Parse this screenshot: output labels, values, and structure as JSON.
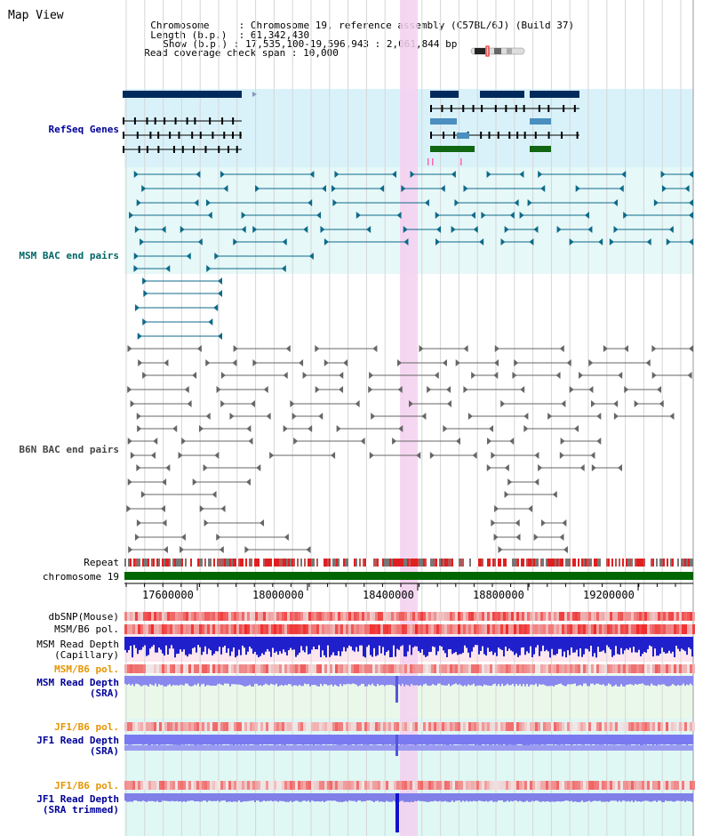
{
  "header": {
    "view_title": "Map View",
    "chromosome_label": "Chromosome",
    "chromosome_value": "Chromosome 19, reference assembly (C57BL/6J) (Build 37)",
    "length_label": "Length (b.p.)",
    "length_value": "61,342,430",
    "show_label": "Show (b.p.)",
    "show_value": "17,535,100-19,596,943 : 2,061,844 bp",
    "span_label": "Read coverage check span",
    "span_value": "10,000"
  },
  "tracks": {
    "refseq": "RefSeq Genes",
    "msm_bac": "MSM BAC end pairs",
    "b6n_bac": "B6N BAC end pairs",
    "repeat": "Repeat",
    "chromosome": "chromosome 19",
    "dbsnp": "dbSNP(Mouse)",
    "msm_b6_pol": "MSM/B6 pol.",
    "msm_read_depth_cap_1": "MSM Read Depth",
    "msm_read_depth_cap_2": "(Capillary)",
    "msm_b6_pol_2": "MSM/B6 pol.",
    "msm_read_depth_sra_1": "MSM Read Depth",
    "msm_read_depth_sra_2": "(SRA)",
    "jf1_b6_pol": "JF1/B6 pol.",
    "jf1_read_depth_1": "JF1 Read Depth",
    "jf1_read_depth_2": "(SRA)",
    "jf1_b6_pol_2": "JF1/B6 pol.",
    "jf1_read_depth_trim_1": "JF1 Read Depth",
    "jf1_read_depth_trim_2": "(SRA trimmed)"
  },
  "axis": {
    "ticks": [
      "17600000",
      "18000000",
      "18400000",
      "18800000",
      "19200000"
    ]
  },
  "colors": {
    "refseq_bg": "#d9f2fa",
    "msm_bg": "#e6f8f8",
    "highlight": "#f5d0f0",
    "gene_dark": "#002b5c",
    "gene_mid": "#4a8fbf",
    "gene_green": "#116611",
    "msm_line": "#0e6a8a",
    "b6n_line": "#666666",
    "chrom_green": "#006600",
    "snp_red": "#ee3333",
    "depth_blue": "#1f1fcc",
    "depth_light_blue": "#7777ee",
    "pol_label_orange": "#e69500",
    "label_blue": "#000099",
    "label_teal": "#006666"
  }
}
